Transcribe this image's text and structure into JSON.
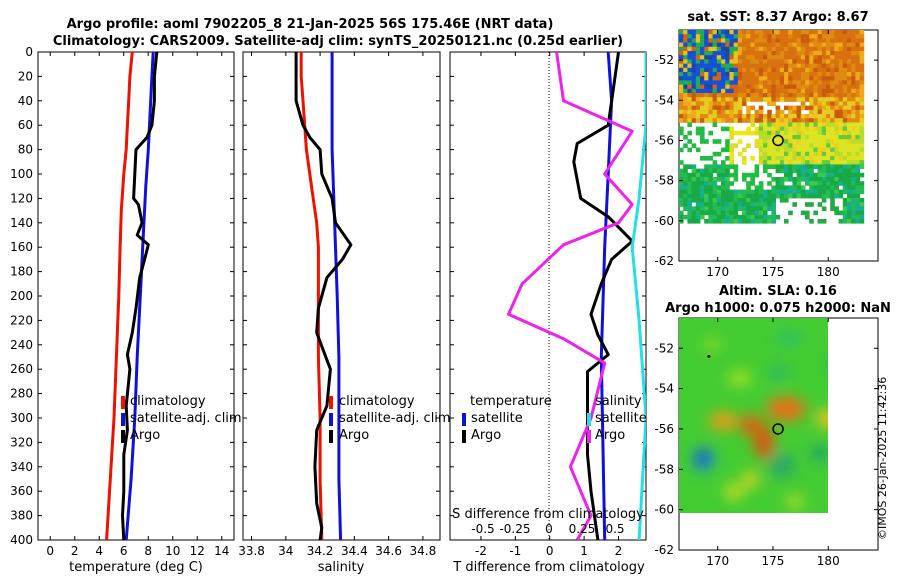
{
  "title": {
    "line1": "Argo profile: aoml 7902205_8 21-Jan-2025 56S 175.46E (NRT data)",
    "line2": "Climatology: CARS2009. Satellite-adj clim: synTS_20250121.nc (0.25d earlier)"
  },
  "timestamp": "©IMOS 26-Jan-2025 11:42:36",
  "colors": {
    "climatology": "#ee1100",
    "satellite": "#1010dd",
    "argo": "#000000",
    "t_diff": "#ee22ee",
    "s_diff": "#22e0e8"
  },
  "chart_data": [
    {
      "type": "line",
      "title": "",
      "xlabel": "temperature (deg C)",
      "ylabel": "",
      "xlim": [
        -1,
        15
      ],
      "ylim": [
        400,
        0
      ],
      "x_ticks": [
        "0",
        "2",
        "4",
        "6",
        "8",
        "10",
        "12",
        "14"
      ],
      "y_ticks": [
        "0",
        "20",
        "40",
        "60",
        "80",
        "100",
        "120",
        "140",
        "160",
        "180",
        "200",
        "220",
        "240",
        "260",
        "280",
        "300",
        "320",
        "340",
        "360",
        "380",
        "400"
      ],
      "legend": [
        "climatology",
        "satellite-adj. clim",
        "Argo"
      ],
      "series": [
        {
          "name": "climatology",
          "color": "#ee1100",
          "points": [
            [
              6.7,
              0
            ],
            [
              6.5,
              20
            ],
            [
              6.4,
              40
            ],
            [
              6.3,
              60
            ],
            [
              6.2,
              80
            ],
            [
              6.0,
              100
            ],
            [
              5.8,
              130
            ],
            [
              5.7,
              160
            ],
            [
              5.6,
              200
            ],
            [
              5.4,
              250
            ],
            [
              5.2,
              300
            ],
            [
              4.9,
              350
            ],
            [
              4.6,
              400
            ]
          ]
        },
        {
          "name": "satellite-adj. clim",
          "color": "#1010dd",
          "points": [
            [
              8.4,
              0
            ],
            [
              8.3,
              20
            ],
            [
              8.2,
              40
            ],
            [
              8.1,
              60
            ],
            [
              8.0,
              80
            ],
            [
              7.8,
              110
            ],
            [
              7.6,
              150
            ],
            [
              7.4,
              190
            ],
            [
              7.1,
              250
            ],
            [
              6.9,
              300
            ],
            [
              6.6,
              350
            ],
            [
              6.2,
              400
            ]
          ]
        },
        {
          "name": "Argo",
          "color": "#000000",
          "points": [
            [
              8.7,
              0
            ],
            [
              8.5,
              20
            ],
            [
              8.5,
              40
            ],
            [
              8.3,
              60
            ],
            [
              7.9,
              70
            ],
            [
              7.0,
              80
            ],
            [
              6.9,
              100
            ],
            [
              6.8,
              120
            ],
            [
              7.2,
              125
            ],
            [
              7.5,
              140
            ],
            [
              7.1,
              150
            ],
            [
              8.0,
              158
            ],
            [
              7.7,
              170
            ],
            [
              7.3,
              185
            ],
            [
              7.0,
              210
            ],
            [
              6.7,
              230
            ],
            [
              6.3,
              248
            ],
            [
              6.5,
              260
            ],
            [
              6.2,
              290
            ],
            [
              6.3,
              310
            ],
            [
              6.0,
              330
            ],
            [
              6.0,
              360
            ],
            [
              5.9,
              380
            ],
            [
              6.0,
              400
            ]
          ]
        }
      ]
    },
    {
      "type": "line",
      "title": "",
      "xlabel": "salinity",
      "ylabel": "",
      "xlim": [
        33.75,
        34.9
      ],
      "ylim": [
        400,
        0
      ],
      "x_ticks": [
        "33.8",
        "34",
        "34.2",
        "34.4",
        "34.6",
        "34.8"
      ],
      "legend": [
        "climatology",
        "satellite-adj. clim",
        "Argo"
      ],
      "series": [
        {
          "name": "climatology",
          "color": "#ee1100",
          "points": [
            [
              34.09,
              0
            ],
            [
              34.09,
              20
            ],
            [
              34.1,
              40
            ],
            [
              34.11,
              60
            ],
            [
              34.12,
              80
            ],
            [
              34.14,
              100
            ],
            [
              34.16,
              120
            ],
            [
              34.18,
              140
            ],
            [
              34.19,
              160
            ],
            [
              34.19,
              200
            ],
            [
              34.19,
              250
            ],
            [
              34.2,
              300
            ],
            [
              34.2,
              350
            ],
            [
              34.21,
              400
            ]
          ]
        },
        {
          "name": "satellite-adj. clim",
          "color": "#1010dd",
          "points": [
            [
              34.27,
              0
            ],
            [
              34.27,
              40
            ],
            [
              34.27,
              80
            ],
            [
              34.28,
              120
            ],
            [
              34.29,
              160
            ],
            [
              34.3,
              200
            ],
            [
              34.31,
              250
            ],
            [
              34.31,
              300
            ],
            [
              34.31,
              350
            ],
            [
              34.32,
              400
            ]
          ]
        },
        {
          "name": "Argo",
          "color": "#000000",
          "points": [
            [
              34.06,
              0
            ],
            [
              34.06,
              20
            ],
            [
              34.06,
              40
            ],
            [
              34.1,
              60
            ],
            [
              34.14,
              70
            ],
            [
              34.2,
              80
            ],
            [
              34.21,
              100
            ],
            [
              34.27,
              120
            ],
            [
              34.29,
              140
            ],
            [
              34.38,
              158
            ],
            [
              34.33,
              170
            ],
            [
              34.24,
              185
            ],
            [
              34.19,
              210
            ],
            [
              34.18,
              230
            ],
            [
              34.22,
              245
            ],
            [
              34.26,
              260
            ],
            [
              34.24,
              290
            ],
            [
              34.18,
              310
            ],
            [
              34.17,
              340
            ],
            [
              34.18,
              370
            ],
            [
              34.21,
              390
            ],
            [
              34.2,
              400
            ]
          ]
        }
      ]
    },
    {
      "type": "line",
      "title": "",
      "xlabel": "T difference from climatology",
      "xlabel_top": "S difference from climatology",
      "xlim": [
        -2.9,
        2.8
      ],
      "ylim": [
        400,
        0
      ],
      "x_ticks": [
        "-2",
        "-1",
        "0",
        "1",
        "2"
      ],
      "x_ticks_top": [
        "-0.5",
        "-0.25",
        "0",
        "0.25",
        "0.5"
      ],
      "legend_left": [
        "temperature",
        "satellite",
        "Argo"
      ],
      "legend_right": [
        "salinity",
        "satellite",
        "Argo"
      ],
      "series": [
        {
          "name": "satellite T diff",
          "color": "#1010dd",
          "points": [
            [
              1.7,
              0
            ],
            [
              1.8,
              40
            ],
            [
              1.7,
              100
            ],
            [
              1.6,
              160
            ],
            [
              1.5,
              250
            ],
            [
              1.6,
              400
            ]
          ]
        },
        {
          "name": "Argo T diff",
          "color": "#000000",
          "points": [
            [
              2.0,
              0
            ],
            [
              1.9,
              20
            ],
            [
              1.7,
              60
            ],
            [
              0.8,
              75
            ],
            [
              0.7,
              90
            ],
            [
              0.9,
              120
            ],
            [
              1.7,
              135
            ],
            [
              2.4,
              155
            ],
            [
              1.8,
              170
            ],
            [
              1.5,
              190
            ],
            [
              1.2,
              215
            ],
            [
              1.4,
              232
            ],
            [
              1.7,
              248
            ],
            [
              1.1,
              262
            ],
            [
              1.1,
              300
            ],
            [
              1.1,
              330
            ],
            [
              1.2,
              360
            ],
            [
              1.4,
              400
            ]
          ]
        },
        {
          "name": "satellite S diff",
          "color": "#22e0e8",
          "points": [
            [
              0.7,
              0
            ],
            [
              0.7,
              60
            ],
            [
              0.65,
              120
            ],
            [
              0.6,
              160
            ],
            [
              0.65,
              220
            ],
            [
              0.7,
              300
            ],
            [
              0.65,
              400
            ]
          ]
        },
        {
          "name": "Argo S diff",
          "color": "#ee22ee",
          "points": [
            [
              0.05,
              0
            ],
            [
              0.1,
              40
            ],
            [
              0.6,
              65
            ],
            [
              0.4,
              100
            ],
            [
              0.6,
              125
            ],
            [
              0.5,
              140
            ],
            [
              0.1,
              158
            ],
            [
              -0.2,
              190
            ],
            [
              -0.3,
              215
            ],
            [
              0.1,
              235
            ],
            [
              0.4,
              255
            ],
            [
              0.3,
              300
            ],
            [
              0.15,
              340
            ],
            [
              0.3,
              380
            ],
            [
              0.2,
              400
            ]
          ]
        }
      ]
    },
    {
      "type": "heatmap",
      "title": "sat. SST: 8.37 Argo: 8.67",
      "xlim": [
        166.5,
        184.5
      ],
      "ylim": [
        -62,
        -50.5
      ],
      "x_ticks": [
        "170",
        "175",
        "180"
      ],
      "y_ticks": [
        "-52",
        "-54",
        "-56",
        "-58",
        "-60",
        "-62"
      ],
      "argo_position": [
        175.46,
        -56
      ]
    },
    {
      "type": "heatmap",
      "title_line1": "Altim. SLA: 0.16",
      "title_line2": "Argo h1000: 0.075 h2000: NaN",
      "xlim": [
        166.5,
        184.5
      ],
      "ylim": [
        -62,
        -50.5
      ],
      "x_ticks": [
        "170",
        "175",
        "180"
      ],
      "y_ticks": [
        "-52",
        "-54",
        "-56",
        "-58",
        "-60",
        "-62"
      ],
      "argo_position": [
        175.46,
        -56
      ]
    }
  ]
}
